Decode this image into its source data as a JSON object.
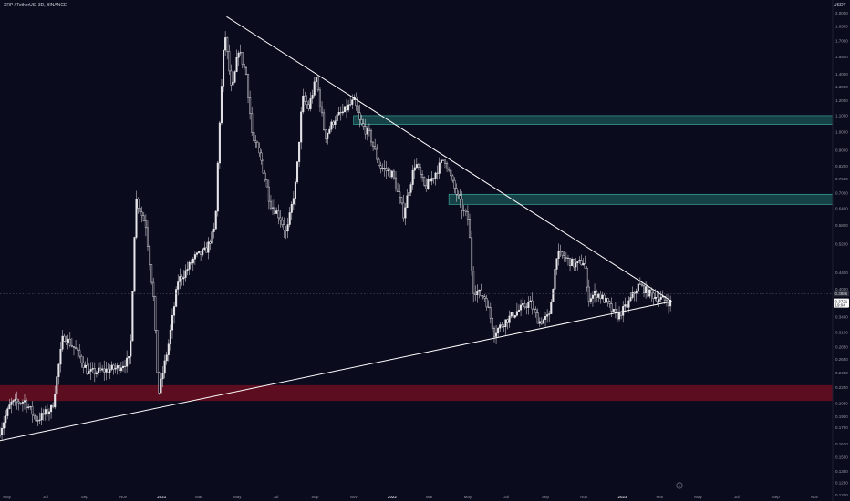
{
  "header": {
    "symbol": "XRP / TetherUS, 3D, BINANCE",
    "currency": "USDT"
  },
  "colors": {
    "background": "#0b0b1e",
    "candle": "#e6e6ea",
    "trendline": "#ffffff",
    "resistance_zone": "#1f6f6a",
    "support_zone": "#7a0f22",
    "text": "#9598a1"
  },
  "icons": {
    "bottom": "tradingview-logo-icon"
  },
  "chart_data": {
    "type": "candlestick",
    "title": "XRP / TetherUS, 3D, BINANCE",
    "y_scale": "log",
    "ylabel": "USDT",
    "ylim": [
      0.116,
      2.16
    ],
    "y_ticks": [
      2.0,
      1.85,
      1.7,
      1.55,
      1.4,
      1.3,
      1.2,
      1.1,
      1.0,
      0.9,
      0.82,
      0.76,
      0.7,
      0.64,
      0.58,
      0.52,
      0.44,
      0.4,
      0.37,
      0.34,
      0.31,
      0.285,
      0.265,
      0.245,
      0.225,
      0.205,
      0.19,
      0.178,
      0.162,
      0.15,
      0.138,
      0.129,
      0.12
    ],
    "y_tick_labels": [
      "2.0000",
      "1.8500",
      "1.7000",
      "1.5500",
      "1.4000",
      "1.3000",
      "1.2000",
      "1.1000",
      "1.0000",
      "0.9000",
      "0.8200",
      "0.7600",
      "0.7000",
      "0.6400",
      "0.5800",
      "0.5200",
      "0.4400",
      "0.4000",
      "0.3700",
      "0.3400",
      "0.3100",
      "0.2850",
      "0.2650",
      "0.2450",
      "0.2250",
      "0.2050",
      "0.1900",
      "0.1780",
      "0.1620",
      "0.1500",
      "0.1380",
      "0.1290",
      "0.1200"
    ],
    "x_range": [
      "2020-04-20",
      "2023-11-30"
    ],
    "x_ticks": [
      {
        "date": "2020-05-01",
        "label": "May",
        "bold": false
      },
      {
        "date": "2020-07-01",
        "label": "Jul",
        "bold": false
      },
      {
        "date": "2020-09-01",
        "label": "Sep",
        "bold": false
      },
      {
        "date": "2020-11-01",
        "label": "Nov",
        "bold": false
      },
      {
        "date": "2021-01-01",
        "label": "2021",
        "bold": true
      },
      {
        "date": "2021-03-01",
        "label": "Mar",
        "bold": false
      },
      {
        "date": "2021-05-01",
        "label": "May",
        "bold": false
      },
      {
        "date": "2021-07-01",
        "label": "Jul",
        "bold": false
      },
      {
        "date": "2021-09-01",
        "label": "Sep",
        "bold": false
      },
      {
        "date": "2021-11-01",
        "label": "Nov",
        "bold": false
      },
      {
        "date": "2022-01-01",
        "label": "2022",
        "bold": true
      },
      {
        "date": "2022-03-01",
        "label": "Mar",
        "bold": false
      },
      {
        "date": "2022-05-01",
        "label": "May",
        "bold": false
      },
      {
        "date": "2022-07-01",
        "label": "Jul",
        "bold": false
      },
      {
        "date": "2022-09-01",
        "label": "Sep",
        "bold": false
      },
      {
        "date": "2022-11-01",
        "label": "Nov",
        "bold": false
      },
      {
        "date": "2023-01-01",
        "label": "2023",
        "bold": true
      },
      {
        "date": "2023-03-01",
        "label": "Mar",
        "bold": false
      },
      {
        "date": "2023-05-01",
        "label": "May",
        "bold": false
      },
      {
        "date": "2023-07-01",
        "label": "Jul",
        "bold": false
      },
      {
        "date": "2023-09-01",
        "label": "Sep",
        "bold": false
      },
      {
        "date": "2023-11-01",
        "label": "Nov",
        "bold": false
      }
    ],
    "price_path": [
      [
        "2020-04-20",
        0.17
      ],
      [
        "2020-05-10",
        0.205
      ],
      [
        "2020-06-01",
        0.208
      ],
      [
        "2020-06-20",
        0.186
      ],
      [
        "2020-07-15",
        0.2
      ],
      [
        "2020-08-01",
        0.305
      ],
      [
        "2020-08-20",
        0.282
      ],
      [
        "2020-09-10",
        0.245
      ],
      [
        "2020-10-01",
        0.248
      ],
      [
        "2020-10-25",
        0.252
      ],
      [
        "2020-11-15",
        0.265
      ],
      [
        "2020-11-24",
        0.68
      ],
      [
        "2020-12-10",
        0.58
      ],
      [
        "2020-12-22",
        0.38
      ],
      [
        "2020-12-30",
        0.215
      ],
      [
        "2021-01-15",
        0.29
      ],
      [
        "2021-01-30",
        0.42
      ],
      [
        "2021-02-10",
        0.44
      ],
      [
        "2021-02-25",
        0.48
      ],
      [
        "2021-03-15",
        0.5
      ],
      [
        "2021-03-30",
        0.57
      ],
      [
        "2021-04-05",
        1.0
      ],
      [
        "2021-04-14",
        1.8
      ],
      [
        "2021-04-25",
        1.25
      ],
      [
        "2021-05-06",
        1.62
      ],
      [
        "2021-05-18",
        1.4
      ],
      [
        "2021-05-28",
        0.96
      ],
      [
        "2021-06-10",
        0.86
      ],
      [
        "2021-06-25",
        0.66
      ],
      [
        "2021-07-10",
        0.61
      ],
      [
        "2021-07-21",
        0.55
      ],
      [
        "2021-08-05",
        0.75
      ],
      [
        "2021-08-15",
        1.22
      ],
      [
        "2021-08-25",
        1.15
      ],
      [
        "2021-09-06",
        1.37
      ],
      [
        "2021-09-20",
        0.97
      ],
      [
        "2021-10-05",
        1.08
      ],
      [
        "2021-10-18",
        1.12
      ],
      [
        "2021-11-05",
        1.2
      ],
      [
        "2021-11-15",
        1.05
      ],
      [
        "2021-11-30",
        0.98
      ],
      [
        "2021-12-15",
        0.82
      ],
      [
        "2022-01-05",
        0.78
      ],
      [
        "2022-01-22",
        0.62
      ],
      [
        "2022-02-10",
        0.84
      ],
      [
        "2022-02-25",
        0.72
      ],
      [
        "2022-03-10",
        0.77
      ],
      [
        "2022-03-28",
        0.86
      ],
      [
        "2022-04-10",
        0.74
      ],
      [
        "2022-04-25",
        0.64
      ],
      [
        "2022-05-05",
        0.6
      ],
      [
        "2022-05-12",
        0.4
      ],
      [
        "2022-06-01",
        0.38
      ],
      [
        "2022-06-15",
        0.31
      ],
      [
        "2022-07-01",
        0.33
      ],
      [
        "2022-07-20",
        0.35
      ],
      [
        "2022-08-10",
        0.37
      ],
      [
        "2022-08-25",
        0.33
      ],
      [
        "2022-09-10",
        0.34
      ],
      [
        "2022-09-22",
        0.49
      ],
      [
        "2022-10-05",
        0.48
      ],
      [
        "2022-10-20",
        0.46
      ],
      [
        "2022-11-05",
        0.47
      ],
      [
        "2022-11-10",
        0.38
      ],
      [
        "2022-11-25",
        0.39
      ],
      [
        "2022-12-10",
        0.37
      ],
      [
        "2022-12-25",
        0.34
      ],
      [
        "2023-01-10",
        0.36
      ],
      [
        "2023-01-30",
        0.41
      ],
      [
        "2023-02-15",
        0.39
      ],
      [
        "2023-03-01",
        0.38
      ],
      [
        "2023-03-20",
        0.37
      ]
    ],
    "trendlines": [
      {
        "name": "upper",
        "from": [
          "2021-04-14",
          1.96
        ],
        "to": [
          "2023-03-20",
          0.372
        ]
      },
      {
        "name": "lower",
        "from": [
          "2020-04-20",
          0.165
        ],
        "to": [
          "2023-03-20",
          0.372
        ]
      }
    ],
    "zones": [
      {
        "name": "resistance-upper",
        "from": "2021-11-01",
        "to": "2023-11-30",
        "low": 1.045,
        "high": 1.1
      },
      {
        "name": "resistance-lower",
        "from": "2022-04-01",
        "to": "2023-11-30",
        "low": 0.655,
        "high": 0.695
      },
      {
        "name": "support",
        "from": "2020-04-20",
        "to": "2023-11-30",
        "low": 0.208,
        "high": 0.228
      }
    ],
    "dotted_level": 0.3886,
    "price_labels": [
      {
        "value": 0.3886,
        "text": "0.3886",
        "color": "#2a2e39",
        "text_color": "#d1d4dc"
      },
      {
        "value": 0.3721,
        "text": "0.3721",
        "sub": "19:04",
        "color": "#ffffff",
        "text_color": "#131722"
      }
    ]
  }
}
